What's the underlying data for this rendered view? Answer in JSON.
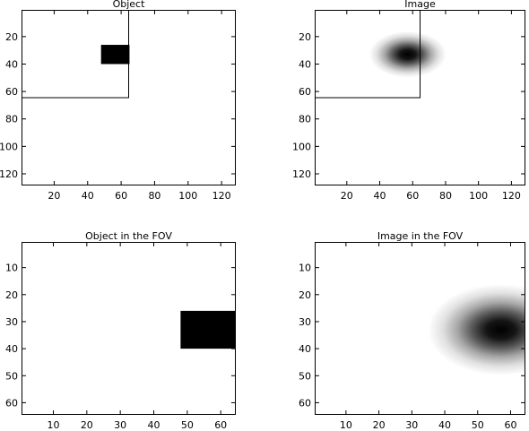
{
  "chart_data": [
    {
      "type": "heatmap",
      "title": "Object",
      "xlabel": "",
      "ylabel": "",
      "xlim": [
        0.5,
        128.5
      ],
      "ylim": [
        128.5,
        0.5
      ],
      "xticks": [
        20,
        40,
        60,
        80,
        100,
        120
      ],
      "yticks": [
        20,
        40,
        60,
        80,
        100,
        120
      ],
      "colormap": "gray",
      "grid": false,
      "object_block": {
        "x": [
          48,
          65
        ],
        "y": [
          26,
          40
        ]
      },
      "fov_outline": [
        [
          0.5,
          64.5
        ],
        [
          64.5,
          64.5
        ],
        [
          64.5,
          0.5
        ]
      ]
    },
    {
      "type": "heatmap",
      "title": "Image",
      "xlabel": "",
      "ylabel": "",
      "xlim": [
        0.5,
        128.5
      ],
      "ylim": [
        128.5,
        0.5
      ],
      "xticks": [
        20,
        40,
        60,
        80,
        100,
        120
      ],
      "yticks": [
        20,
        40,
        60,
        80,
        100,
        120
      ],
      "colormap": "gray",
      "grid": false,
      "blur_center": {
        "x": 57,
        "y": 33
      },
      "blur_sigma": {
        "x": 9,
        "y": 6.5
      },
      "fov_outline": [
        [
          0.5,
          64.5
        ],
        [
          64.5,
          64.5
        ],
        [
          64.5,
          0.5
        ]
      ]
    },
    {
      "type": "heatmap",
      "title": "Object in the FOV",
      "xlabel": "",
      "ylabel": "",
      "xlim": [
        0.5,
        64.5
      ],
      "ylim": [
        64.5,
        0.5
      ],
      "xticks": [
        10,
        20,
        30,
        40,
        50,
        60
      ],
      "yticks": [
        10,
        20,
        30,
        40,
        50,
        60
      ],
      "colormap": "gray",
      "grid": false,
      "object_block": {
        "x": [
          48,
          64.5
        ],
        "y": [
          26,
          40
        ]
      }
    },
    {
      "type": "heatmap",
      "title": "Image in the FOV",
      "xlabel": "",
      "ylabel": "",
      "xlim": [
        0.5,
        64.5
      ],
      "ylim": [
        64.5,
        0.5
      ],
      "xticks": [
        10,
        20,
        30,
        40,
        50,
        60
      ],
      "yticks": [
        10,
        20,
        30,
        40,
        50,
        60
      ],
      "colormap": "gray",
      "grid": false,
      "blur_center": {
        "x": 57,
        "y": 33
      },
      "blur_sigma": {
        "x": 8.5,
        "y": 6.5
      }
    }
  ],
  "colors": {
    "background": "#ffffff",
    "ink": "#000000"
  }
}
